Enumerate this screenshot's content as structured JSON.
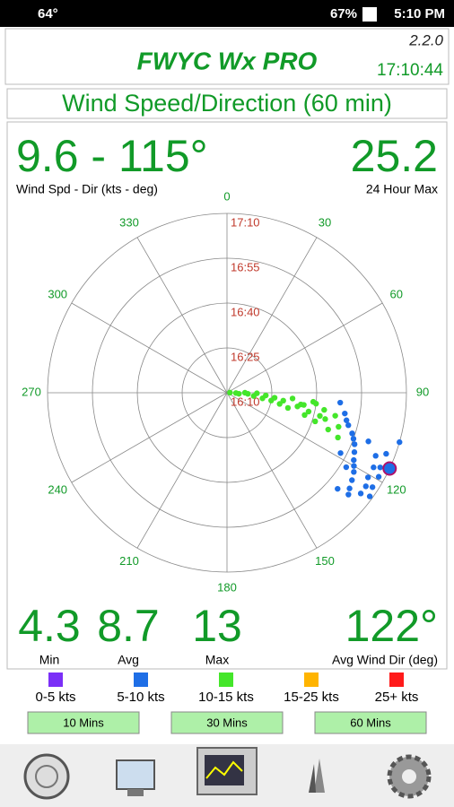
{
  "status_bar": {
    "temperature": "64°",
    "battery": "67%",
    "time": "5:10 PM"
  },
  "header": {
    "title": "FWYC Wx PRO",
    "version": "2.2.0",
    "clock": "17:10:44"
  },
  "panel_title": "Wind Speed/Direction (60 min)",
  "current": {
    "value": "9.6 - 115°",
    "label": "Wind Spd - Dir (kts - deg)"
  },
  "max_24h": {
    "value": "25.2",
    "label": "24 Hour Max"
  },
  "polar_chart": {
    "type": "polar",
    "angle_ticks": [
      0,
      30,
      60,
      90,
      120,
      150,
      180,
      210,
      240,
      270,
      300,
      330
    ],
    "rlim": [
      0,
      60
    ],
    "rticks": [
      {
        "value": 0,
        "label": "16:10"
      },
      {
        "value": 15,
        "label": "16:25"
      },
      {
        "value": 30,
        "label": "16:40"
      },
      {
        "value": 45,
        "label": "16:55"
      },
      {
        "value": 60,
        "label": "17:10"
      }
    ],
    "series": [
      {
        "name": "10-15 kts",
        "color": "#44e62a",
        "dir": [
          88,
          92,
          95,
          90,
          93,
          97,
          91,
          99,
          94,
          100,
          96,
          102,
          98,
          104,
          95,
          101,
          99,
          106,
          103,
          97,
          108,
          100,
          105,
          110,
          102,
          96,
          107,
          112,
          104,
          99
        ],
        "time": [
          1,
          3,
          4,
          6,
          7,
          9,
          10,
          12,
          13,
          15,
          16,
          18,
          19,
          21,
          22,
          24,
          25,
          27,
          28,
          30,
          31,
          33,
          34,
          36,
          37,
          29,
          39,
          40,
          32,
          26
        ]
      },
      {
        "name": "5-10 kts",
        "color": "#1e6ee6",
        "dir": [
          95,
          100,
          105,
          108,
          110,
          112,
          115,
          118,
          120,
          122,
          125,
          128,
          130,
          113,
          117,
          121,
          124,
          127,
          111,
          116,
          119,
          123,
          126,
          114,
          118,
          122,
          109,
          106,
          103,
          131
        ],
        "time": [
          38,
          40,
          42,
          44,
          45,
          46,
          47,
          48,
          49,
          50,
          51,
          52,
          53,
          54,
          55,
          55,
          56,
          56,
          57,
          57,
          58,
          58,
          59,
          59,
          43,
          47,
          50,
          60,
          41,
          49
        ]
      }
    ],
    "latest": {
      "dir": 115,
      "time": 60,
      "color": "#1e6ee6",
      "outline": "#b0106a"
    }
  },
  "stats": [
    {
      "value": "4.3",
      "label": "Min"
    },
    {
      "value": "8.7",
      "label": "Avg"
    },
    {
      "value": "13",
      "label": "Max"
    }
  ],
  "avg_dir": {
    "value": "122°",
    "label": "Avg Wind Dir (deg)"
  },
  "legend": [
    {
      "label": "0-5 kts",
      "color": "#7b2ff7"
    },
    {
      "label": "5-10 kts",
      "color": "#1e6ee6"
    },
    {
      "label": "10-15 kts",
      "color": "#44e62a"
    },
    {
      "label": "15-25 kts",
      "color": "#ffb400"
    },
    {
      "label": "25+ kts",
      "color": "#ff1a1a"
    }
  ],
  "buttons": [
    "10 Mins",
    "30 Mins",
    "60 Mins"
  ]
}
